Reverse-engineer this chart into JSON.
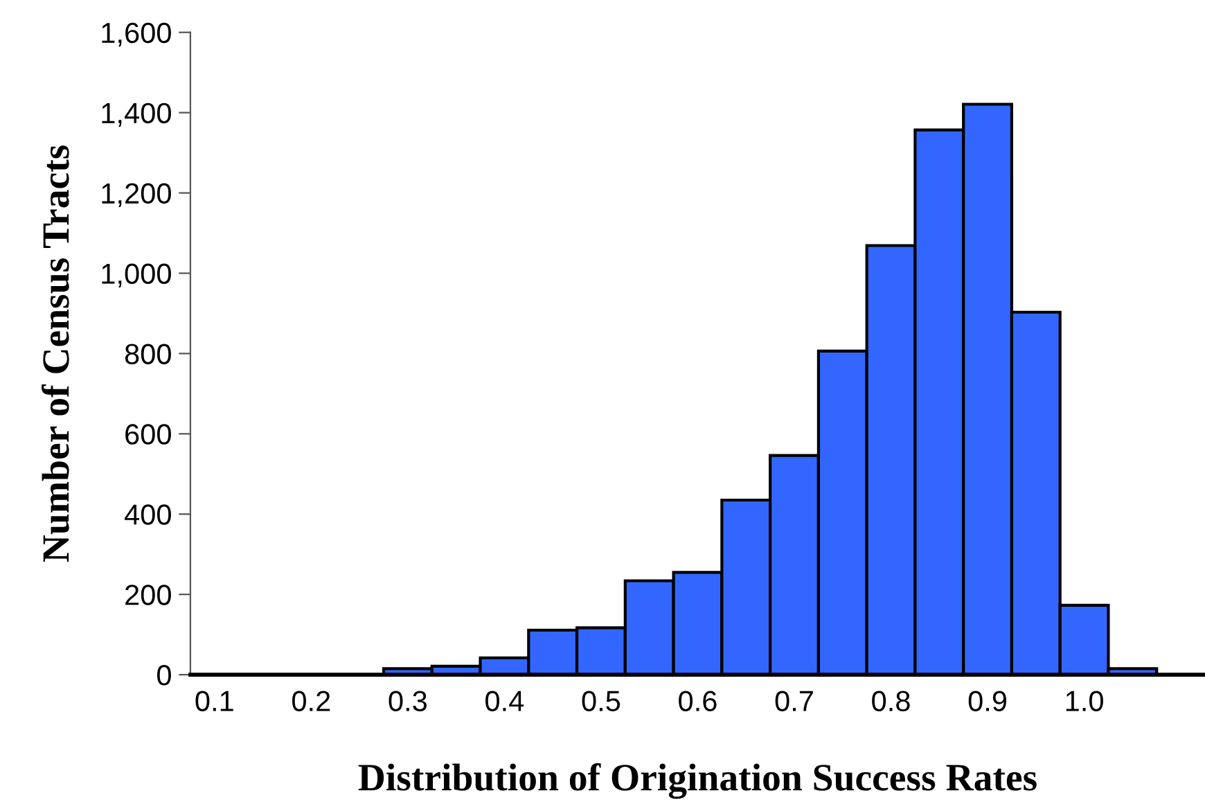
{
  "chart_data": {
    "type": "histogram",
    "xlabel": "Distribution of Origination Success Rates",
    "ylabel": "Number of Census Tracts",
    "bins": [
      0.275,
      0.325,
      0.375,
      0.425,
      0.475,
      0.525,
      0.575,
      0.625,
      0.675,
      0.725,
      0.775,
      0.825,
      0.875,
      0.925,
      0.975,
      1.025,
      1.075
    ],
    "values": [
      15,
      21,
      42,
      111,
      117,
      234,
      255,
      435,
      546,
      806,
      1069,
      1357,
      1421,
      903,
      173,
      15
    ],
    "color": "#3366ff",
    "xlim": [
      0.075,
      1.125
    ],
    "xticks": [
      0.1,
      0.2,
      0.3,
      0.4,
      0.5,
      0.6,
      0.7,
      0.8,
      0.9,
      {
        "value": 1.0,
        "label": "1.0"
      }
    ],
    "ylim": [
      0,
      1600
    ],
    "yticks": [
      0,
      200,
      400,
      600,
      800,
      {
        "value": 1000,
        "label": "1,000"
      },
      {
        "value": 1200,
        "label": "1,200"
      },
      {
        "value": 1400,
        "label": "1,400"
      },
      {
        "value": 1600,
        "label": "1,600"
      }
    ],
    "grid": false
  }
}
